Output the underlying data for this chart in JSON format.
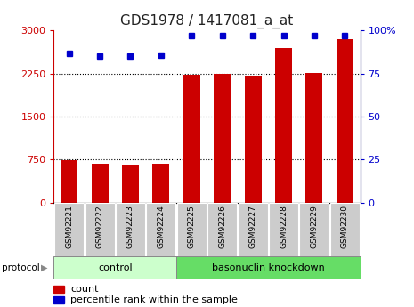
{
  "title": "GDS1978 / 1417081_a_at",
  "samples": [
    "GSM92221",
    "GSM92222",
    "GSM92223",
    "GSM92224",
    "GSM92225",
    "GSM92226",
    "GSM92227",
    "GSM92228",
    "GSM92229",
    "GSM92230"
  ],
  "counts": [
    740,
    680,
    670,
    685,
    2230,
    2250,
    2220,
    2700,
    2260,
    2850
  ],
  "percentiles": [
    87,
    85,
    85,
    86,
    97,
    97,
    97,
    97,
    97,
    97
  ],
  "n_control": 4,
  "n_knockdown": 6,
  "control_color": "#ccffcc",
  "knockdown_color": "#66dd66",
  "bar_color": "#cc0000",
  "dot_color": "#0000cc",
  "left_ylim": [
    0,
    3000
  ],
  "right_ylim": [
    0,
    100
  ],
  "left_yticks": [
    0,
    750,
    1500,
    2250,
    3000
  ],
  "right_yticks": [
    0,
    25,
    50,
    75,
    100
  ],
  "right_yticklabels": [
    "0",
    "25",
    "50",
    "75",
    "100%"
  ],
  "left_yticklabels": [
    "0",
    "750",
    "1500",
    "2250",
    "3000"
  ],
  "protocol_label": "protocol",
  "control_label": "control",
  "knockdown_label": "basonuclin knockdown",
  "legend_count": "count",
  "legend_percentile": "percentile rank within the sample",
  "bg_color": "#ffffff",
  "sample_bg": "#cccccc",
  "dotted_gridlines": [
    750,
    1500,
    2250
  ],
  "title_fontsize": 11,
  "tick_fontsize": 8,
  "label_fontsize": 6.5,
  "proto_fontsize": 8
}
